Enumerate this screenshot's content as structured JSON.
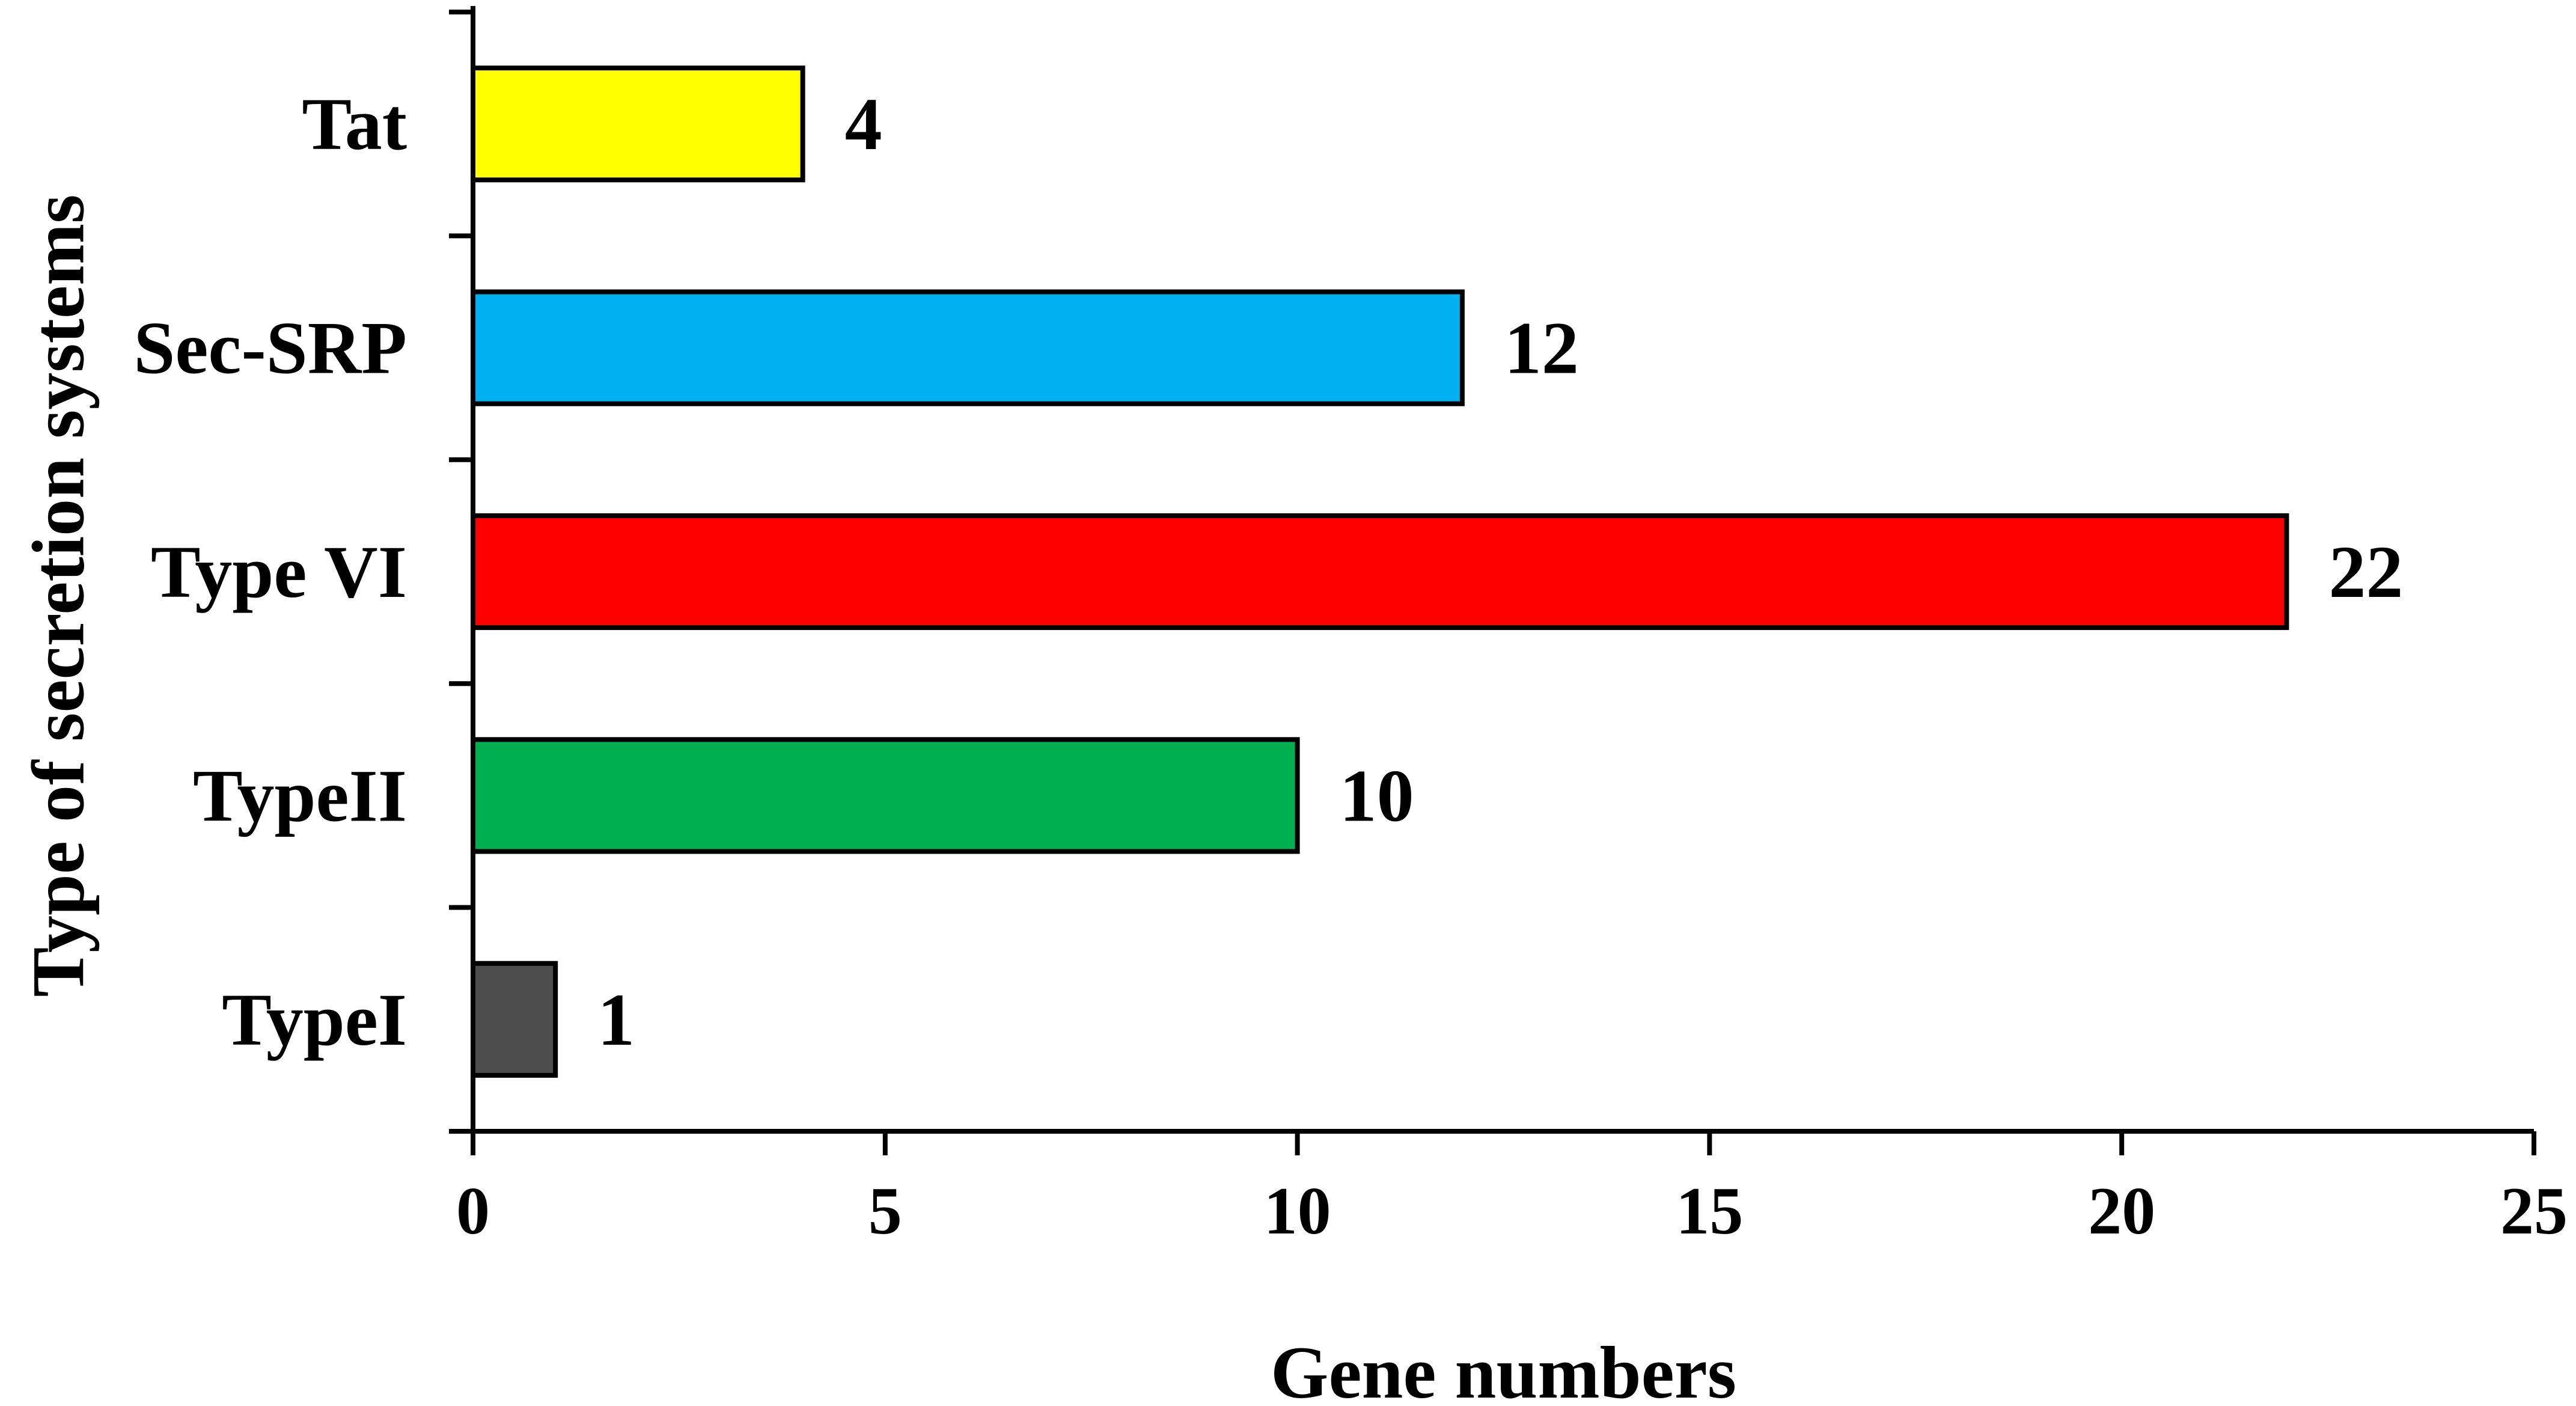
{
  "chart_data": {
    "type": "bar",
    "orientation": "horizontal",
    "categories": [
      "TypeI",
      "TypeII",
      "Type VI",
      "Sec-SRP",
      "Tat"
    ],
    "values": [
      1,
      10,
      22,
      12,
      4
    ],
    "data_labels": [
      "1",
      "10",
      "22",
      "12",
      "4"
    ],
    "colors": [
      "#4d4d4d",
      "#00b050",
      "#ff0000",
      "#00b0f0",
      "#ffff00"
    ],
    "title": "",
    "xlabel": "Gene numbers",
    "ylabel": "Type of secretion systems",
    "xlim": [
      0,
      25
    ],
    "xticks": [
      0,
      5,
      10,
      15,
      20,
      25
    ],
    "xtick_labels": [
      "0",
      "5",
      "10",
      "15",
      "20",
      "25"
    ],
    "grid": false,
    "legend": "none"
  }
}
